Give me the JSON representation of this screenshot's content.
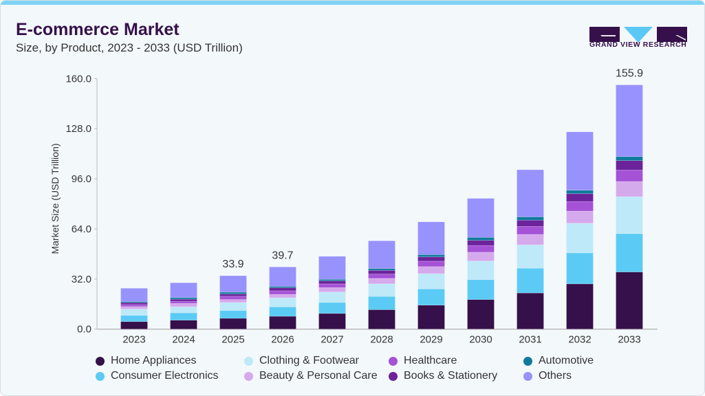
{
  "header": {
    "title": "E-commerce Market",
    "subtitle": "Size, by Product, 2023 - 2033 (USD Trillion)"
  },
  "logo": {
    "text": "GRAND VIEW RESEARCH",
    "colors": {
      "dark": "#35104a",
      "accent": "#5bc8f5"
    }
  },
  "chart_data": {
    "type": "bar",
    "stacked": true,
    "ylabel": "Market Size (USD Trillion)",
    "ylim": [
      0,
      160
    ],
    "yticks": [
      "0.0",
      "32.0",
      "64.0",
      "96.0",
      "128.0",
      "160.0"
    ],
    "grid": false,
    "legend_position": "bottom",
    "categories": [
      "2023",
      "2024",
      "2025",
      "2026",
      "2027",
      "2028",
      "2029",
      "2030",
      "2031",
      "2032",
      "2033"
    ],
    "data_labels": {
      "2025": "33.9",
      "2026": "39.7",
      "2033": "155.9"
    },
    "series": [
      {
        "name": "Home Appliances",
        "color": "#35104a",
        "values": [
          4.8,
          5.7,
          6.9,
          8.2,
          10.0,
          12.4,
          15.3,
          18.9,
          23.1,
          28.9,
          36.5
        ]
      },
      {
        "name": "Consumer Electronics",
        "color": "#5bcbf5",
        "values": [
          4.0,
          4.7,
          5.0,
          6.0,
          7.0,
          8.5,
          10.4,
          12.7,
          15.8,
          19.8,
          24.5
        ]
      },
      {
        "name": "Clothing & Footwear",
        "color": "#bde9f9",
        "values": [
          4.0,
          3.8,
          5.1,
          5.8,
          6.7,
          8.0,
          9.7,
          11.9,
          14.9,
          18.9,
          23.6
        ]
      },
      {
        "name": "Beauty & Personal Care",
        "color": "#d5aaec",
        "values": [
          1.6,
          2.2,
          1.9,
          2.2,
          2.8,
          3.5,
          4.5,
          5.6,
          6.7,
          7.8,
          9.7
        ]
      },
      {
        "name": "Healthcare",
        "color": "#a552d7",
        "values": [
          1.3,
          1.4,
          2.1,
          2.3,
          2.4,
          2.8,
          3.5,
          4.3,
          5.1,
          6.1,
          7.3
        ]
      },
      {
        "name": "Books & Stationery",
        "color": "#6c229b",
        "values": [
          1.2,
          1.3,
          1.4,
          1.9,
          1.9,
          2.3,
          2.7,
          3.3,
          4.0,
          5.0,
          6.0
        ]
      },
      {
        "name": "Automotive",
        "color": "#117a9c",
        "values": [
          0.7,
          1.0,
          1.2,
          0.9,
          1.0,
          1.2,
          1.5,
          1.9,
          2.1,
          2.2,
          2.6
        ]
      },
      {
        "name": "Others",
        "color": "#9892fd",
        "values": [
          8.5,
          9.5,
          10.5,
          12.4,
          14.7,
          17.7,
          20.9,
          24.9,
          30.1,
          37.3,
          45.8
        ]
      }
    ]
  }
}
